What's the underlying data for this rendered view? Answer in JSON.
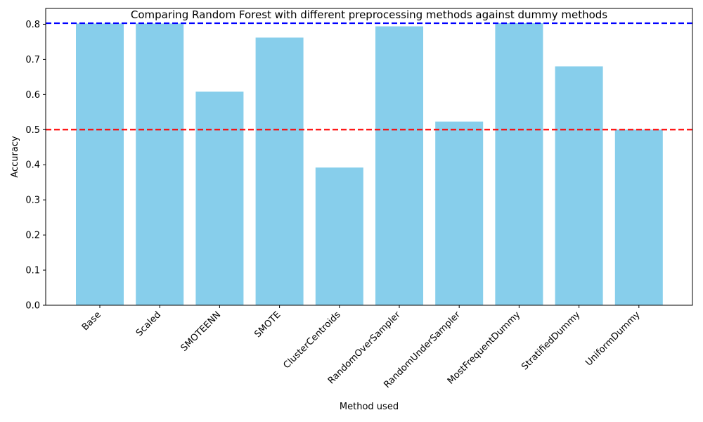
{
  "chart_data": {
    "type": "bar",
    "title": "Comparing Random Forest with different preprocessing methods against dummy methods",
    "xlabel": "Method used",
    "ylabel": "Accuracy",
    "categories": [
      "Base",
      "Scaled",
      "SMOTEENN",
      "SMOTE",
      "ClusterCentroids",
      "RandomOverSampler",
      "RandomUnderSampler",
      "MostFrequentDummy",
      "StratifiedDummy",
      "UniformDummy"
    ],
    "values": [
      0.802,
      0.802,
      0.608,
      0.762,
      0.392,
      0.794,
      0.523,
      0.803,
      0.68,
      0.5
    ],
    "ylim": [
      0,
      0.845
    ],
    "yticks": [
      "0.0",
      "0.1",
      "0.2",
      "0.3",
      "0.4",
      "0.5",
      "0.6",
      "0.7",
      "0.8"
    ],
    "grid": false,
    "bar_color": "#87ceeb",
    "reference_lines": [
      {
        "value": 0.803,
        "color": "#0000ff",
        "style": "dashed"
      },
      {
        "value": 0.5,
        "color": "#ff0000",
        "style": "dashed"
      }
    ]
  }
}
